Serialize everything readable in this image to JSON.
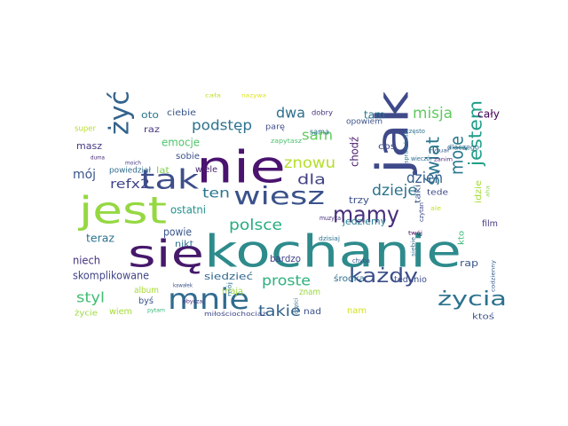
{
  "figure": {
    "type": "word-cloud",
    "background": "#ffffff"
  },
  "words": [
    {
      "text": "kochanie",
      "color": "#2e8b8c"
    },
    {
      "text": "nie",
      "color": "#4a136f"
    },
    {
      "text": "jak",
      "color": "#3f4a8a"
    },
    {
      "text": "jest",
      "color": "#95d842"
    },
    {
      "text": "się",
      "color": "#46196b"
    },
    {
      "text": "mnie",
      "color": "#2f6b8e"
    },
    {
      "text": "tak",
      "color": "#3d4e8a"
    },
    {
      "text": "żyć",
      "color": "#33638d"
    },
    {
      "text": "wiesz",
      "color": "#3a528b"
    },
    {
      "text": "mamy",
      "color": "#472d7b"
    },
    {
      "text": "każdy",
      "color": "#3c4f8a"
    },
    {
      "text": "życia",
      "color": "#2c728e"
    },
    {
      "text": "świat",
      "color": "#2a768e"
    },
    {
      "text": "jestem",
      "color": "#1f9e89"
    },
    {
      "text": "moje",
      "color": "#2a7a8e"
    },
    {
      "text": "dzień",
      "color": "#355f8d"
    },
    {
      "text": "dzieje",
      "color": "#2c738e"
    },
    {
      "text": "misja",
      "color": "#60c95f"
    },
    {
      "text": "polsce",
      "color": "#27ad81"
    },
    {
      "text": "podstęp",
      "color": "#2c738e"
    },
    {
      "text": "znowu",
      "color": "#b5de2b"
    },
    {
      "text": "takie",
      "color": "#33638d"
    },
    {
      "text": "proste",
      "color": "#2db27d"
    },
    {
      "text": "sam",
      "color": "#63cb5f"
    },
    {
      "text": "dla",
      "color": "#424186"
    },
    {
      "text": "dwa",
      "color": "#2d708e"
    },
    {
      "text": "ten",
      "color": "#2a768e"
    },
    {
      "text": "mój",
      "color": "#39558c"
    },
    {
      "text": "styl",
      "color": "#40bd72"
    },
    {
      "text": "refx2",
      "color": "#404688"
    },
    {
      "text": "emocje",
      "color": "#50c46a"
    },
    {
      "text": "tam",
      "color": "#2c738e"
    },
    {
      "text": "cały",
      "color": "#440154"
    },
    {
      "text": "ostatni",
      "color": "#21918c"
    },
    {
      "text": "teraz",
      "color": "#2c728e"
    },
    {
      "text": "niech",
      "color": "#46327e"
    },
    {
      "text": "skomplikowane",
      "color": "#414487"
    },
    {
      "text": "chodź",
      "color": "#481a6c"
    },
    {
      "text": "trzy",
      "color": "#3b528b"
    },
    {
      "text": "jedziemy",
      "color": "#287c8e"
    },
    {
      "text": "idzie",
      "color": "#a5db36"
    },
    {
      "text": "bardzo",
      "color": "#414487"
    },
    {
      "text": "siedzieć",
      "color": "#31688e"
    },
    {
      "text": "masz",
      "color": "#443a83"
    },
    {
      "text": "oto",
      "color": "#2a788e"
    },
    {
      "text": "raz",
      "color": "#45337d"
    },
    {
      "text": "ciebie",
      "color": "#39568c"
    },
    {
      "text": "sobie",
      "color": "#3b528b"
    },
    {
      "text": "wiele",
      "color": "#482173"
    },
    {
      "text": "powiedział",
      "color": "#2f6c8e"
    },
    {
      "text": "lat",
      "color": "#7fd34e"
    },
    {
      "text": "powie",
      "color": "#39558c"
    },
    {
      "text": "nikt",
      "color": "#2d708e"
    },
    {
      "text": "album",
      "color": "#a8db34"
    },
    {
      "text": "byś",
      "color": "#3a548c"
    },
    {
      "text": "wiem",
      "color": "#a5db36"
    },
    {
      "text": "mają",
      "color": "#9bd93c"
    },
    {
      "text": "znam",
      "color": "#98d83e"
    },
    {
      "text": "nad",
      "color": "#3b518b"
    },
    {
      "text": "nam",
      "color": "#d2e21b"
    },
    {
      "text": "środka",
      "color": "#2e6e8e"
    },
    {
      "text": "rap",
      "color": "#38588c"
    },
    {
      "text": "tedunio",
      "color": "#3d4d8a"
    },
    {
      "text": "film",
      "color": "#453882"
    },
    {
      "text": "kto",
      "color": "#38b977"
    },
    {
      "text": "ktoś",
      "color": "#3b528b"
    },
    {
      "text": "taki",
      "color": "#39568c"
    },
    {
      "text": "tede",
      "color": "#3e4989"
    },
    {
      "text": "coś",
      "color": "#3e4c8a"
    },
    {
      "text": "opowiem",
      "color": "#3b528b"
    },
    {
      "text": "parę",
      "color": "#3d4e8a"
    },
    {
      "text": "sama",
      "color": "#2d708e"
    },
    {
      "text": "dobry",
      "color": "#46327e"
    },
    {
      "text": "super",
      "color": "#b8de29"
    },
    {
      "text": "zapytasz",
      "color": "#4ac16d"
    },
    {
      "text": "nazywa",
      "color": "#dde318"
    },
    {
      "text": "cała",
      "color": "#c0df25"
    },
    {
      "text": "często",
      "color": "#2c728e"
    },
    {
      "text": "wieczór",
      "color": "#2e6d8e"
    },
    {
      "text": "zanim",
      "color": "#482878"
    },
    {
      "text": "dlaczego",
      "color": "#2f6b8e"
    },
    {
      "text": "aha",
      "color": "#8ed645"
    },
    {
      "text": "rytuał",
      "color": "#365c8d"
    },
    {
      "text": "sprawdzisz",
      "color": "#2a788e"
    },
    {
      "text": "muzyka",
      "color": "#472d7b"
    },
    {
      "text": "czytan",
      "color": "#3e4a89"
    },
    {
      "text": "ale",
      "color": "#c2df23"
    },
    {
      "text": "dzisiaj",
      "color": "#2d708e"
    },
    {
      "text": "chyba",
      "color": "#3a538b"
    },
    {
      "text": "twój",
      "color": "#440154"
    },
    {
      "text": "siebie",
      "color": "#2e6e8e"
    },
    {
      "text": "codzienny",
      "color": "#355e8d"
    },
    {
      "text": "duma",
      "color": "#482576"
    },
    {
      "text": "moich",
      "color": "#443983"
    },
    {
      "text": "obyczaj",
      "color": "#472c7a"
    },
    {
      "text": "kawałek",
      "color": "#3b528b"
    },
    {
      "text": "pytam",
      "color": "#35b779"
    },
    {
      "text": "życie",
      "color": "#9bd93c"
    },
    {
      "text": "mój",
      "color": "#2c728e"
    },
    {
      "text": "części",
      "color": "#2f6c8e"
    },
    {
      "text": "miłościochociaż",
      "color": "#3e4989"
    }
  ]
}
